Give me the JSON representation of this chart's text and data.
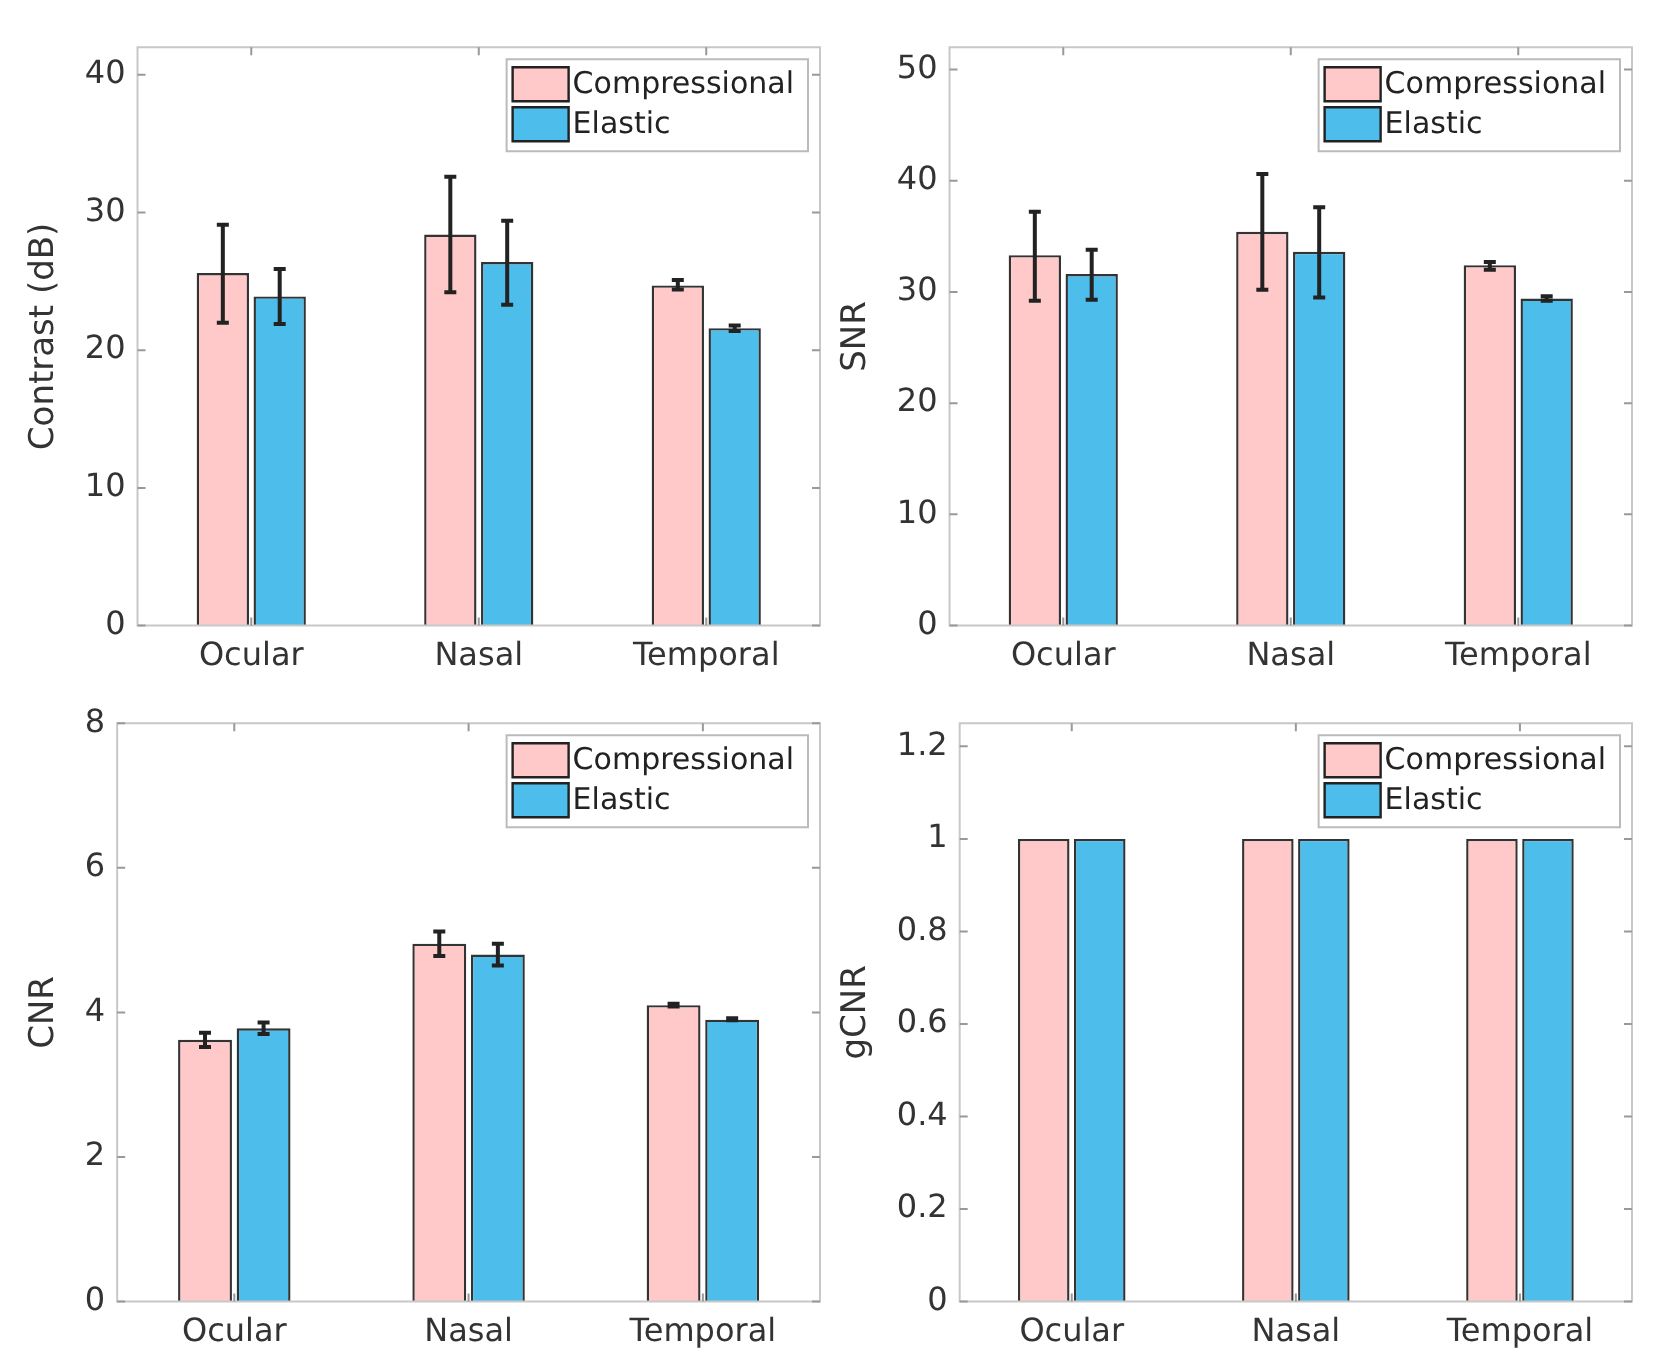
{
  "chart_data": [
    {
      "type": "bar",
      "ylabel": "Contrast (dB)",
      "categories": [
        "Ocular",
        "Nasal",
        "Temporal"
      ],
      "ylim": [
        0,
        42
      ],
      "yticks": [
        0,
        10,
        20,
        30,
        40
      ],
      "grid": false,
      "legend": "top right",
      "series": [
        {
          "name": "Compressional",
          "color": "#ffc9c9",
          "values": [
            25.6,
            28.4,
            24.7
          ],
          "errors": [
            [
              22.0,
              29.1
            ],
            [
              24.2,
              32.6
            ],
            [
              24.4,
              25.1
            ]
          ]
        },
        {
          "name": "Elastic",
          "color": "#4dbeeb",
          "values": [
            23.9,
            26.4,
            21.6
          ],
          "errors": [
            [
              21.9,
              25.9
            ],
            [
              23.3,
              29.4
            ],
            [
              21.4,
              21.8
            ]
          ]
        }
      ]
    },
    {
      "type": "bar",
      "ylabel": "SNR",
      "categories": [
        "Ocular",
        "Nasal",
        "Temporal"
      ],
      "ylim": [
        0,
        52
      ],
      "yticks": [
        0,
        10,
        20,
        30,
        40,
        50
      ],
      "grid": false,
      "legend": "top right",
      "series": [
        {
          "name": "Compressional",
          "color": "#ffc9c9",
          "values": [
            33.3,
            35.4,
            32.4
          ],
          "errors": [
            [
              29.2,
              37.2
            ],
            [
              30.2,
              40.6
            ],
            [
              32.0,
              32.7
            ]
          ]
        },
        {
          "name": "Elastic",
          "color": "#4dbeeb",
          "values": [
            31.6,
            33.6,
            29.4
          ],
          "errors": [
            [
              29.3,
              33.8
            ],
            [
              29.5,
              37.6
            ],
            [
              29.2,
              29.6
            ]
          ]
        }
      ]
    },
    {
      "type": "bar",
      "ylabel": "CNR",
      "categories": [
        "Ocular",
        "Nasal",
        "Temporal"
      ],
      "ylim": [
        0,
        8
      ],
      "yticks": [
        0,
        2,
        4,
        6,
        8
      ],
      "grid": false,
      "legend": "top right",
      "series": [
        {
          "name": "Compressional",
          "color": "#ffc9c9",
          "values": [
            3.62,
            4.95,
            4.1
          ],
          "errors": [
            [
              3.52,
              3.72
            ],
            [
              4.78,
              5.12
            ],
            [
              4.08,
              4.12
            ]
          ]
        },
        {
          "name": "Elastic",
          "color": "#4dbeeb",
          "values": [
            3.78,
            4.8,
            3.9
          ],
          "errors": [
            [
              3.7,
              3.86
            ],
            [
              4.65,
              4.95
            ],
            [
              3.89,
              3.92
            ]
          ]
        }
      ]
    },
    {
      "type": "bar",
      "ylabel": "gCNR",
      "categories": [
        "Ocular",
        "Nasal",
        "Temporal"
      ],
      "ylim": [
        0,
        1.25
      ],
      "yticks": [
        0,
        0.2,
        0.4,
        0.6,
        0.8,
        1,
        1.2
      ],
      "grid": false,
      "legend": "top right",
      "series": [
        {
          "name": "Compressional",
          "color": "#ffc9c9",
          "values": [
            1,
            1,
            1
          ]
        },
        {
          "name": "Elastic",
          "color": "#4dbeeb",
          "values": [
            1,
            1,
            1
          ]
        }
      ]
    }
  ]
}
